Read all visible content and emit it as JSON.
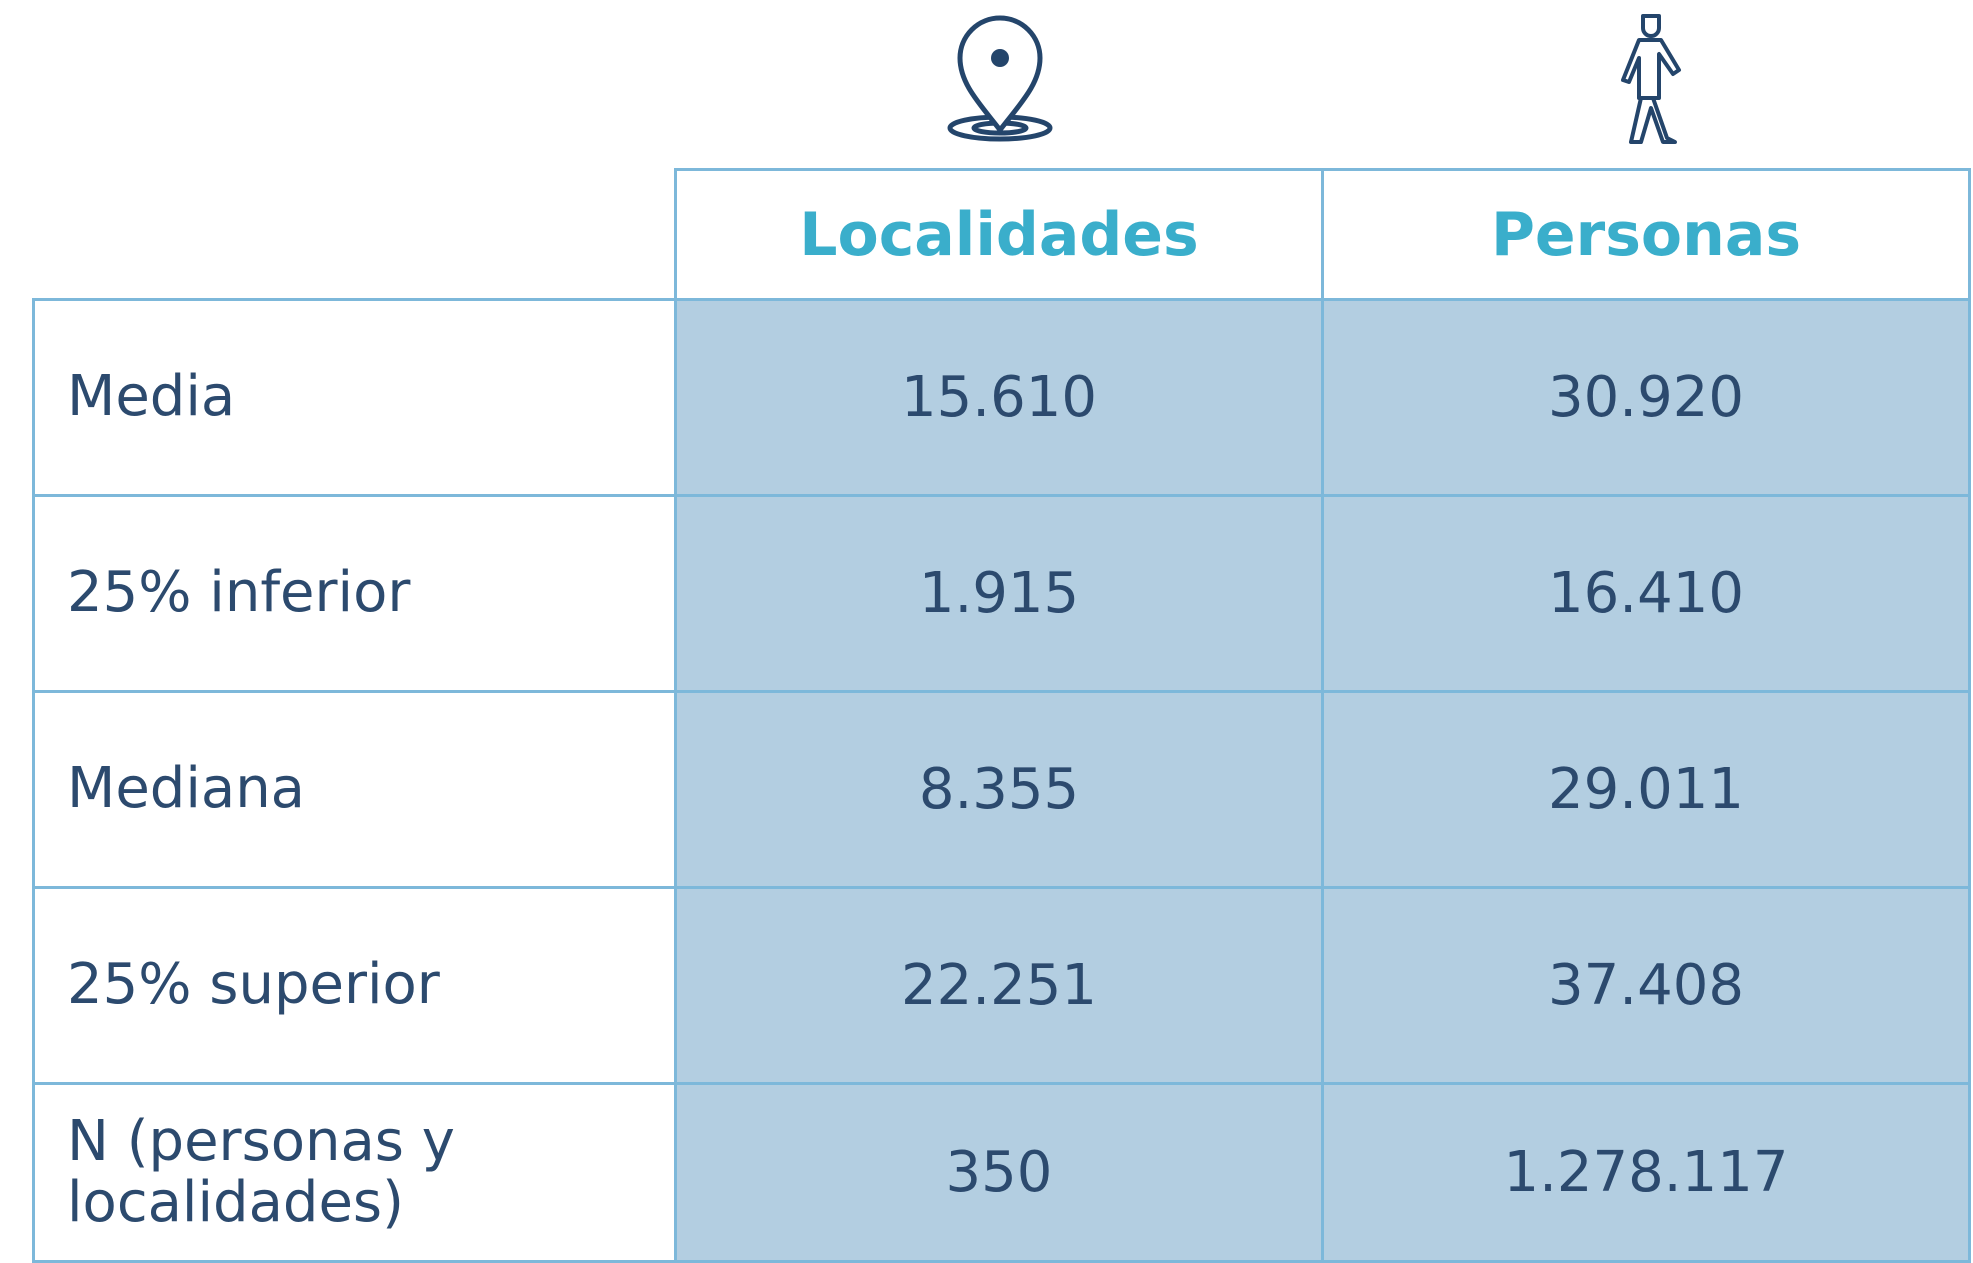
{
  "table": {
    "header": [
      "Localidades",
      "Personas"
    ],
    "rows": [
      [
        "Media",
        "15.610",
        "30.920"
      ],
      [
        "25% inferior",
        "1.915",
        "16.410"
      ],
      [
        "Mediana",
        "8.355",
        "29.011"
      ],
      [
        "25% superior",
        "22.251",
        "37.408"
      ],
      [
        "N (personas y localidades)",
        "350",
        "1.278.117"
      ]
    ]
  }
}
